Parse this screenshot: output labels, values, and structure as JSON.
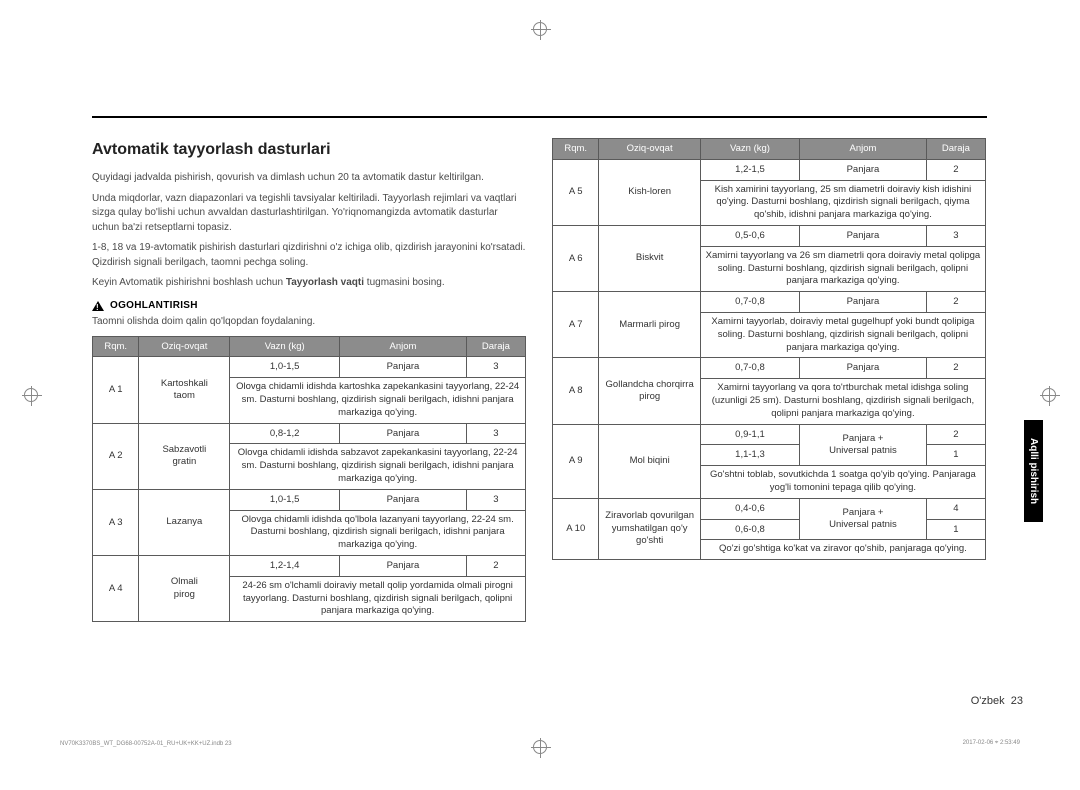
{
  "title": "Avtomatik tayyorlash dasturlari",
  "paragraphs": [
    "Quyidagi jadvalda pishirish, qovurish va dimlash uchun 20 ta avtomatik dastur keltirilgan.",
    "Unda miqdorlar, vazn diapazonlari va tegishli tavsiyalar keltiriladi. Tayyorlash rejimlari va vaqtlari sizga qulay bo'lishi uchun avvaldan dasturlashtirilgan. Yo'riqnomangizda avtomatik dasturlar uchun ba'zi retseptlarni topasiz.",
    "1-8, 18 va 19-avtomatik pishirish dasturlari qizdirishni o'z ichiga olib, qizdirish jarayonini ko'rsatadi. Qizdirish signali berilgach, taomni pechga soling."
  ],
  "after_para_prefix": "Keyin Avtomatik pishirishni boshlash uchun ",
  "after_para_bold": "Tayyorlash vaqti",
  "after_para_suffix": " tugmasini bosing.",
  "warning_label": "OGOHLANTIRISH",
  "warning_text": "Taomni olishda doim qalin qo'lqopdan foydalaning.",
  "headers": {
    "rqm": "Rqm.",
    "food": "Oziq-ovqat",
    "weight": "Vazn (kg)",
    "item": "Anjom",
    "level": "Daraja"
  },
  "left_rows": [
    {
      "rqm": "A 1",
      "food": "Kartoshkali taom",
      "w": "1,0-1,5",
      "item": "Panjara",
      "lvl": "3",
      "instr": "Olovga chidamli idishda kartoshka zapekankasini tayyorlang, 22-24 sm. Dasturni boshlang, qizdirish signali berilgach, idishni panjara markaziga qo'ying."
    },
    {
      "rqm": "A 2",
      "food": "Sabzavotli gratin",
      "w": "0,8-1,2",
      "item": "Panjara",
      "lvl": "3",
      "instr": "Olovga chidamli idishda sabzavot zapekankasini tayyorlang, 22-24 sm. Dasturni boshlang, qizdirish signali berilgach, idishni panjara markaziga qo'ying."
    },
    {
      "rqm": "A 3",
      "food": "Lazanya",
      "w": "1,0-1,5",
      "item": "Panjara",
      "lvl": "3",
      "instr": "Olovga chidamli idishda qo'lbola lazanyani tayyorlang, 22-24 sm. Dasturni boshlang, qizdirish signali berilgach, idishni panjara markaziga qo'ying."
    },
    {
      "rqm": "A 4",
      "food": "Olmali pirog",
      "w": "1,2-1,4",
      "item": "Panjara",
      "lvl": "2",
      "instr": "24-26 sm o'lchamli doiraviy metall qolip yordamida olmali pirogni tayyorlang. Dasturni boshlang, qizdirish signali berilgach, qolipni panjara markaziga qo'ying."
    }
  ],
  "right_rows": [
    {
      "rqm": "A 5",
      "food": "Kish-loren",
      "w": "1,2-1,5",
      "item": "Panjara",
      "lvl": "2",
      "instr": "Kish xamirini tayyorlang, 25 sm diametrli doiraviy kish idishini qo'ying. Dasturni boshlang, qizdirish signali berilgach, qiyma qo'shib, idishni panjara markaziga qo'ying."
    },
    {
      "rqm": "A 6",
      "food": "Biskvit",
      "w": "0,5-0,6",
      "item": "Panjara",
      "lvl": "3",
      "instr": "Xamirni tayyorlang va 26 sm diametrli qora doiraviy metal qolipga soling. Dasturni boshlang, qizdirish signali berilgach, qolipni panjara markaziga qo'ying."
    },
    {
      "rqm": "A 7",
      "food": "Marmarli pirog",
      "w": "0,7-0,8",
      "item": "Panjara",
      "lvl": "2",
      "instr": "Xamirni tayyorlab, doiraviy metal gugelhupf yoki bundt qolipiga soling. Dasturni boshlang, qizdirish signali berilgach, qolipni panjara markaziga qo'ying."
    },
    {
      "rqm": "A 8",
      "food": "Gollandcha chorqirra pirog",
      "w": "0,7-0,8",
      "item": "Panjara",
      "lvl": "2",
      "instr": "Xamirni tayyorlang va qora to'rtburchak metal idishga soling (uzunligi 25 sm). Dasturni boshlang, qizdirish signali berilgach, qolipni panjara markaziga qo'ying."
    },
    {
      "rqm": "A 9",
      "food": "Mol biqini",
      "w1": "0,9-1,1",
      "w2": "1,1-1,3",
      "item12": "Panjara + Universal patnis",
      "lvl1": "2",
      "lvl2": "1",
      "instr": "Go'shtni toblab, sovutkichda 1 soatga qo'yib qo'ying. Panjaraga yog'li tomonini tepaga qilib qo'ying."
    },
    {
      "rqm": "A 10",
      "food": "Ziravorlab qovurilgan yumshatilgan qo'y go'shti",
      "w1": "0,4-0,6",
      "w2": "0,6-0,8",
      "item12": "Panjara + Universal patnis",
      "lvl1": "4",
      "lvl2": "1",
      "instr": "Qo'zi go'shtiga ko'kat va ziravor qo'shib, panjaraga qo'ying."
    }
  ],
  "side_tab": "Aqlli pishirish",
  "page_label_lang": "O'zbek",
  "page_label_num": "23",
  "footer_left": "NV70K3370BS_WT_DG68-00752A-01_RU+UK+KK+UZ.indb   23",
  "footer_right": "2017-02-06   ⌖ 2:53:49"
}
